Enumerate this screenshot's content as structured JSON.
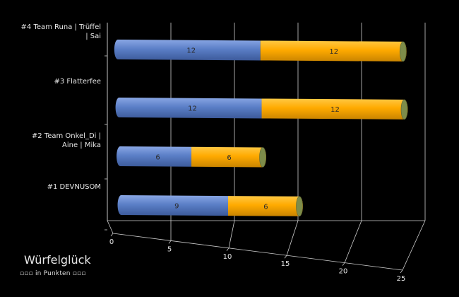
{
  "chart_data": {
    "type": "bar",
    "orientation": "horizontal",
    "stacked": true,
    "title": "Würfelglück",
    "subtitle": "▫▫▫ in Punkten ▫▫▫",
    "categories": [
      "#1 DEVNUSOM",
      "#2 Team Onkel_Di | Aine | Mika",
      "#3 Flatterfee",
      "#4 Team Runa | Trüffel | Sai"
    ],
    "series": [
      {
        "values": [
          9,
          6,
          12,
          12
        ],
        "color": "#5b7fc7"
      },
      {
        "values": [
          6,
          6,
          12,
          12
        ],
        "color": "#ffaa00"
      }
    ],
    "xlim": [
      0,
      25
    ],
    "xticks": [
      0,
      5,
      10,
      15,
      20,
      25
    ],
    "grid": true,
    "legend": "none"
  }
}
